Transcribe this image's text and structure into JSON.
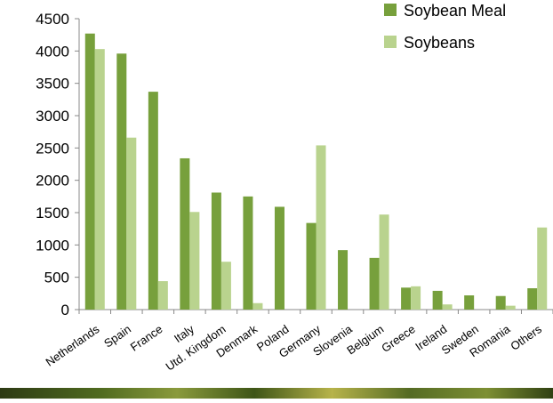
{
  "chart_data": {
    "type": "bar",
    "title": "",
    "xlabel": "",
    "ylabel": "",
    "ylim": [
      0,
      4500
    ],
    "yticks": [
      0,
      500,
      1000,
      1500,
      2000,
      2500,
      3000,
      3500,
      4000,
      4500
    ],
    "grid": false,
    "legend_position": "top-right",
    "categories": [
      "Netherlands",
      "Spain",
      "France",
      "Italy",
      "Utd. Kingdom",
      "Denmark",
      "Poland",
      "Germany",
      "Slovenia",
      "Belgium",
      "Greece",
      "Ireland",
      "Sweden",
      "Romania",
      "Others"
    ],
    "series": [
      {
        "name": "Soybean Meal",
        "color": "#77a03c",
        "values": [
          4270,
          3960,
          3370,
          2340,
          1810,
          1750,
          1590,
          1340,
          920,
          800,
          340,
          290,
          220,
          210,
          330
        ]
      },
      {
        "name": "Soybeans",
        "color": "#b9d38e",
        "values": [
          4030,
          2660,
          440,
          1510,
          740,
          100,
          0,
          2540,
          0,
          1470,
          360,
          80,
          0,
          60,
          1270
        ]
      }
    ]
  }
}
